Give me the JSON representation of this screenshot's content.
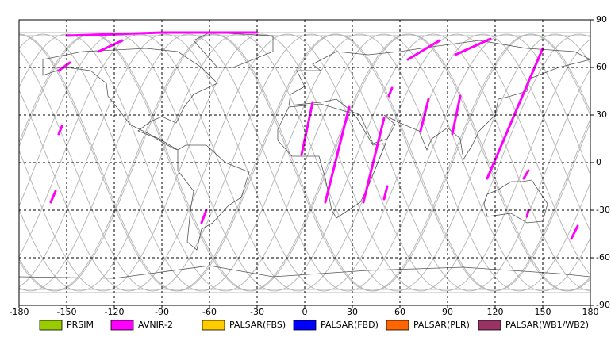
{
  "map": {
    "xlim": [
      -180,
      180
    ],
    "ylim": [
      -90,
      90
    ],
    "xticks": [
      -180,
      -150,
      -120,
      -90,
      -60,
      -30,
      0,
      30,
      60,
      90,
      120,
      150,
      180
    ],
    "yticks": [
      -90,
      -60,
      -30,
      0,
      30,
      60,
      90
    ]
  },
  "legend": [
    {
      "label": "PRSIM",
      "color": "#99cc00"
    },
    {
      "label": "AVNIR-2",
      "color": "#ff00ff"
    },
    {
      "label": "PALSAR(FBS)",
      "color": "#ffcc00"
    },
    {
      "label": "PALSAR(FBD)",
      "color": "#0000ff"
    },
    {
      "label": "PALSAR(PLR)",
      "color": "#ff6600"
    },
    {
      "label": "PALSAR(WB1/WB2)",
      "color": "#993366"
    }
  ]
}
